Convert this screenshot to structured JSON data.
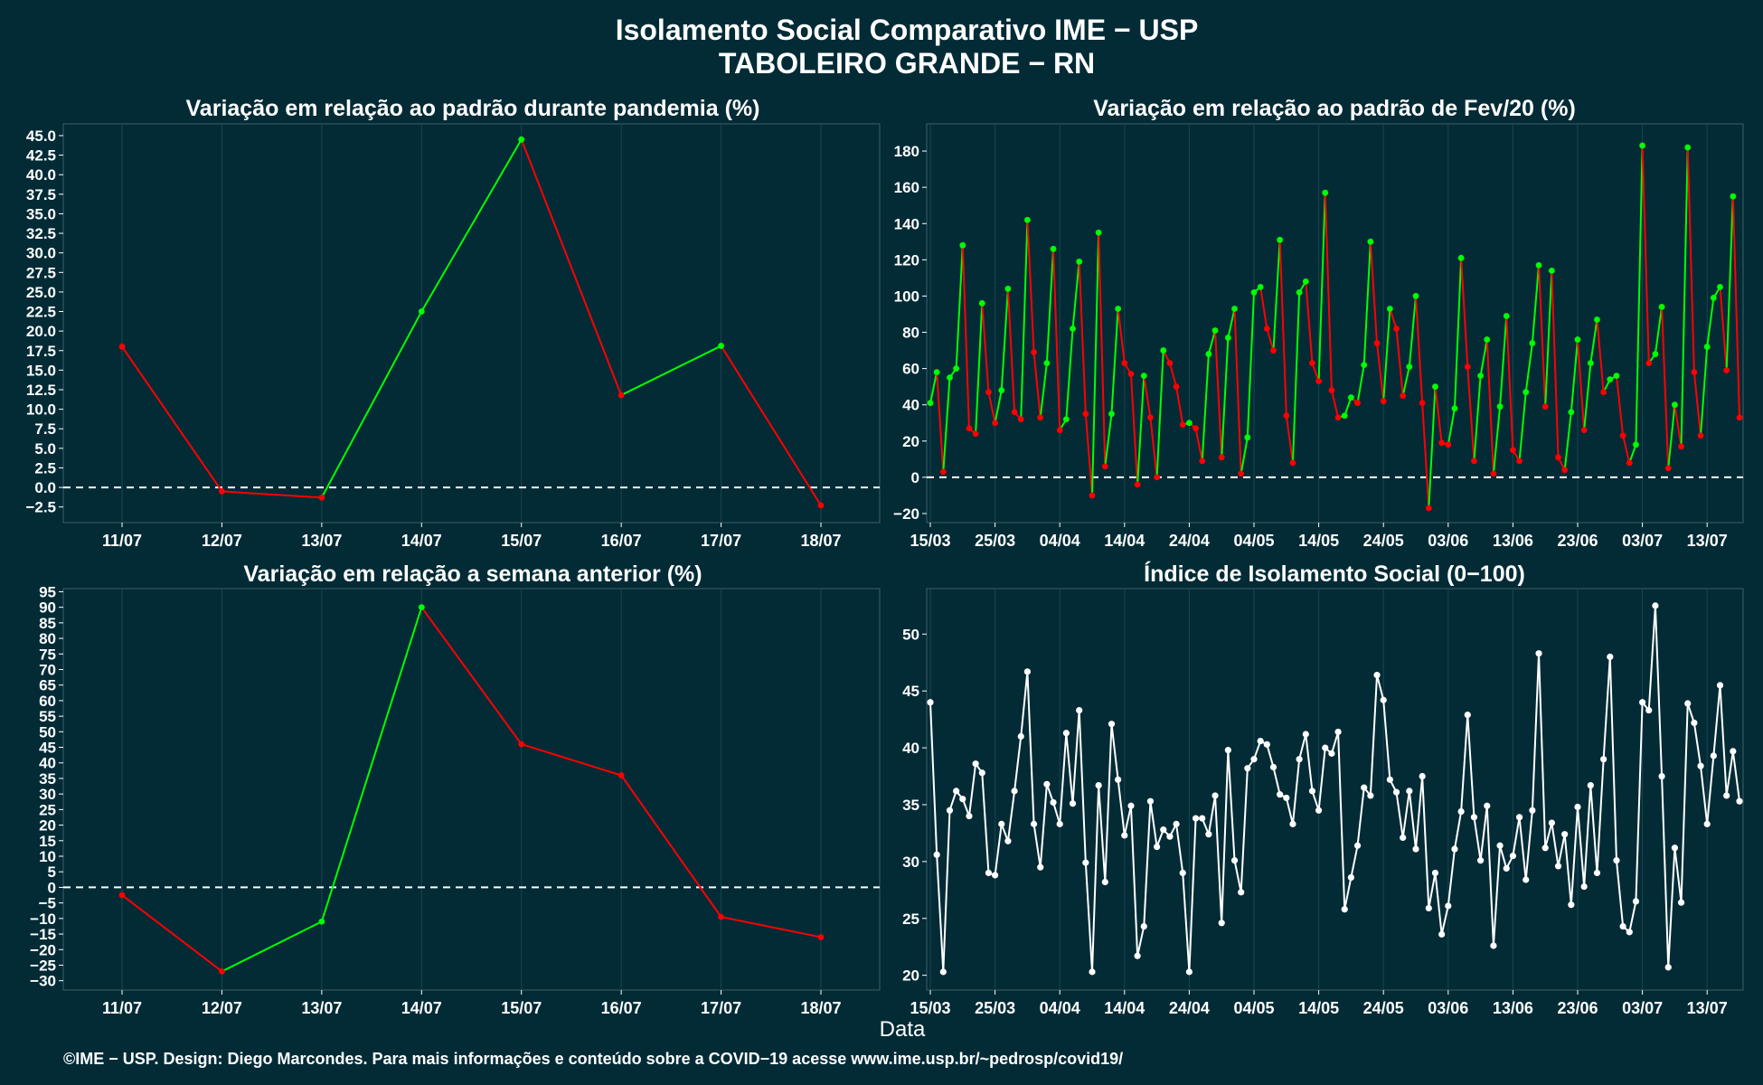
{
  "page": {
    "title_line1": "Isolamento Social Comparativo IME − USP",
    "title_line2": "TABOLEIRO GRANDE − RN",
    "xlabel": "Data",
    "footer": "©IME − USP. Design: Diego Marcondes. Para mais informações e conteúdo sobre a COVID−19 acesse www.ime.usp.br/~pedrosp/covid19/"
  },
  "colors": {
    "background": "#022b36",
    "positive": "#00ff00",
    "negative": "#ff0000",
    "index_line": "#ffffff",
    "grid": "#1b4450"
  },
  "chart_data": [
    {
      "id": "pandemia",
      "type": "line",
      "title": "Variação em relação ao padrão durante pandemia (%)",
      "categories": [
        "11/07",
        "12/07",
        "13/07",
        "14/07",
        "15/07",
        "16/07",
        "17/07",
        "18/07"
      ],
      "values": [
        18.0,
        -0.5,
        -1.3,
        22.5,
        44.5,
        11.8,
        18.1,
        -2.3
      ],
      "ylim": [
        -4.5,
        46.5
      ],
      "yticks": [
        -2.5,
        0.0,
        2.5,
        5.0,
        7.5,
        10.0,
        12.5,
        15.0,
        17.5,
        20.0,
        22.5,
        25.0,
        27.5,
        30.0,
        32.5,
        35.0,
        37.5,
        40.0,
        42.5,
        45.0
      ],
      "ytick_labels": [
        "−2.5",
        "0.0",
        "2.5",
        "5.0",
        "7.5",
        "10.0",
        "12.5",
        "15.0",
        "17.5",
        "20.0",
        "22.5",
        "25.0",
        "27.5",
        "30.0",
        "32.5",
        "35.0",
        "37.5",
        "40.0",
        "42.5",
        "45.0"
      ],
      "reference_line": 0
    },
    {
      "id": "fev20",
      "type": "line",
      "title": "Variação em relação ao padrão de Fev/20 (%)",
      "x_start": "15/03",
      "values": [
        41,
        58,
        3,
        55,
        60,
        128,
        27,
        24,
        96,
        47,
        30,
        48,
        104,
        36,
        32,
        142,
        69,
        33,
        63,
        126,
        26,
        32,
        82,
        119,
        35,
        -10,
        135,
        6,
        35,
        93,
        63,
        57,
        -4,
        56,
        33,
        0,
        70,
        63,
        50,
        29,
        30,
        27,
        9,
        68,
        81,
        11,
        77,
        93,
        2,
        22,
        102,
        105,
        82,
        70,
        131,
        34,
        8,
        102,
        108,
        63,
        53,
        157,
        48,
        33,
        34,
        44,
        41,
        62,
        130,
        74,
        42,
        93,
        82,
        45,
        61,
        100,
        41,
        -17,
        50,
        19,
        18,
        38,
        121,
        61,
        9,
        56,
        76,
        2,
        39,
        89,
        15,
        9,
        47,
        74,
        117,
        39,
        114,
        11,
        4,
        36,
        76,
        26,
        63,
        87,
        47,
        54,
        56,
        23,
        8,
        18,
        183,
        63,
        68,
        94,
        5,
        40,
        17,
        182,
        58,
        23,
        72,
        99,
        105,
        59,
        155,
        33
      ],
      "ylim": [
        -25,
        195
      ],
      "yticks": [
        -20,
        0,
        20,
        40,
        60,
        80,
        100,
        120,
        140,
        160,
        180
      ],
      "ytick_labels": [
        "−20",
        "0",
        "20",
        "40",
        "60",
        "80",
        "100",
        "120",
        "140",
        "160",
        "180"
      ],
      "xtick_labels": [
        "15/03",
        "25/03",
        "04/04",
        "14/04",
        "24/04",
        "04/05",
        "14/05",
        "24/05",
        "03/06",
        "13/06",
        "23/06",
        "03/07",
        "13/07"
      ],
      "xtick_index": [
        0,
        10,
        20,
        30,
        40,
        50,
        60,
        70,
        80,
        90,
        100,
        110,
        120
      ],
      "reference_line": 0
    },
    {
      "id": "semana",
      "type": "line",
      "title": "Variação em relação a semana anterior (%)",
      "categories": [
        "11/07",
        "12/07",
        "13/07",
        "14/07",
        "15/07",
        "16/07",
        "17/07",
        "18/07"
      ],
      "values": [
        -2.5,
        -27,
        -11,
        90,
        46,
        36,
        -9.5,
        -16
      ],
      "ylim": [
        -33,
        96
      ],
      "yticks": [
        -30,
        -25,
        -20,
        -15,
        -10,
        -5,
        0,
        5,
        10,
        15,
        20,
        25,
        30,
        35,
        40,
        45,
        50,
        55,
        60,
        65,
        70,
        75,
        80,
        85,
        90,
        95
      ],
      "ytick_labels": [
        "−30",
        "−25",
        "−20",
        "−15",
        "−10",
        "−5",
        "0",
        "5",
        "10",
        "15",
        "20",
        "25",
        "30",
        "35",
        "40",
        "45",
        "50",
        "55",
        "60",
        "65",
        "70",
        "75",
        "80",
        "85",
        "90",
        "95"
      ],
      "reference_line": 0
    },
    {
      "id": "indice",
      "type": "line",
      "title": "Índice de Isolamento Social (0−100)",
      "x_start": "15/03",
      "values": [
        44.0,
        30.6,
        20.3,
        34.5,
        36.2,
        35.5,
        34.0,
        38.6,
        37.8,
        29.0,
        28.8,
        33.3,
        31.8,
        36.2,
        41.0,
        46.7,
        33.3,
        29.5,
        36.8,
        35.2,
        33.3,
        41.3,
        35.1,
        43.3,
        29.9,
        20.3,
        36.7,
        28.2,
        42.1,
        37.2,
        32.3,
        34.9,
        21.7,
        24.3,
        35.3,
        31.3,
        32.8,
        32.2,
        33.3,
        29.0,
        20.3,
        33.8,
        33.8,
        32.4,
        35.8,
        24.6,
        39.8,
        30.1,
        27.3,
        38.2,
        39.0,
        40.6,
        40.3,
        38.3,
        35.9,
        35.6,
        33.3,
        39.0,
        41.2,
        36.2,
        34.5,
        40.0,
        39.5,
        41.4,
        25.8,
        28.6,
        31.4,
        36.5,
        35.8,
        46.4,
        44.2,
        37.2,
        36.1,
        32.1,
        36.2,
        31.1,
        37.5,
        25.9,
        29.0,
        23.6,
        26.1,
        31.1,
        34.4,
        42.9,
        33.9,
        30.1,
        34.9,
        22.6,
        31.4,
        29.4,
        30.5,
        33.9,
        28.4,
        34.5,
        48.3,
        31.2,
        33.4,
        29.6,
        32.4,
        26.2,
        34.8,
        27.8,
        36.7,
        29.0,
        39.0,
        48.0,
        30.1,
        24.3,
        23.8,
        26.5,
        44.0,
        43.3,
        52.5,
        37.5,
        20.7,
        31.2,
        26.4,
        43.9,
        42.2,
        38.4,
        33.3,
        39.3,
        45.5,
        35.8,
        39.7,
        35.3
      ],
      "ylim": [
        18.7,
        54.0
      ],
      "yticks": [
        20,
        25,
        30,
        35,
        40,
        45,
        50
      ],
      "ytick_labels": [
        "20",
        "25",
        "30",
        "35",
        "40",
        "45",
        "50"
      ],
      "xtick_labels": [
        "15/03",
        "25/03",
        "04/04",
        "14/04",
        "24/04",
        "04/05",
        "14/05",
        "24/05",
        "03/06",
        "13/06",
        "23/06",
        "03/07",
        "13/07"
      ],
      "xtick_index": [
        0,
        10,
        20,
        30,
        40,
        50,
        60,
        70,
        80,
        90,
        100,
        110,
        120
      ]
    }
  ]
}
